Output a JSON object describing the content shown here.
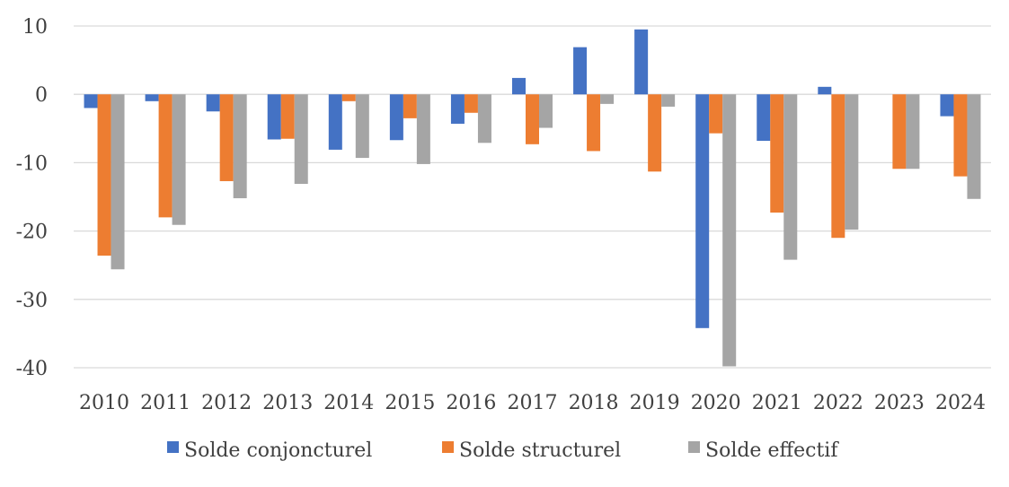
{
  "chart_data": {
    "type": "bar",
    "title": "",
    "xlabel": "",
    "ylabel": "",
    "ylim": [
      -40,
      10
    ],
    "yticks": [
      10,
      0,
      -10,
      -20,
      -30,
      -40
    ],
    "grid": true,
    "legend_position": "bottom",
    "categories": [
      "2010",
      "2011",
      "2012",
      "2013",
      "2014",
      "2015",
      "2016",
      "2017",
      "2018",
      "2019",
      "2020",
      "2021",
      "2022",
      "2023",
      "2024"
    ],
    "series": [
      {
        "name": "Solde conjoncturel",
        "color": "#4472C4",
        "values": [
          -2.0,
          -1.0,
          -2.5,
          -6.6,
          -8.1,
          -6.7,
          -4.3,
          2.4,
          6.9,
          9.5,
          -34.2,
          -6.8,
          1.1,
          0.0,
          -3.2
        ]
      },
      {
        "name": "Solde structurel",
        "color": "#ED7D31",
        "values": [
          -23.6,
          -18.0,
          -12.7,
          -6.5,
          -1.0,
          -3.5,
          -2.7,
          -7.3,
          -8.3,
          -11.3,
          -5.7,
          -17.3,
          -21.0,
          -10.9,
          -12.0
        ]
      },
      {
        "name": "Solde effectif",
        "color": "#A5A5A5",
        "values": [
          -25.6,
          -19.1,
          -15.2,
          -13.1,
          -9.3,
          -10.2,
          -7.1,
          -4.9,
          -1.4,
          -1.8,
          -39.8,
          -24.2,
          -19.8,
          -10.9,
          -15.3
        ]
      }
    ]
  }
}
